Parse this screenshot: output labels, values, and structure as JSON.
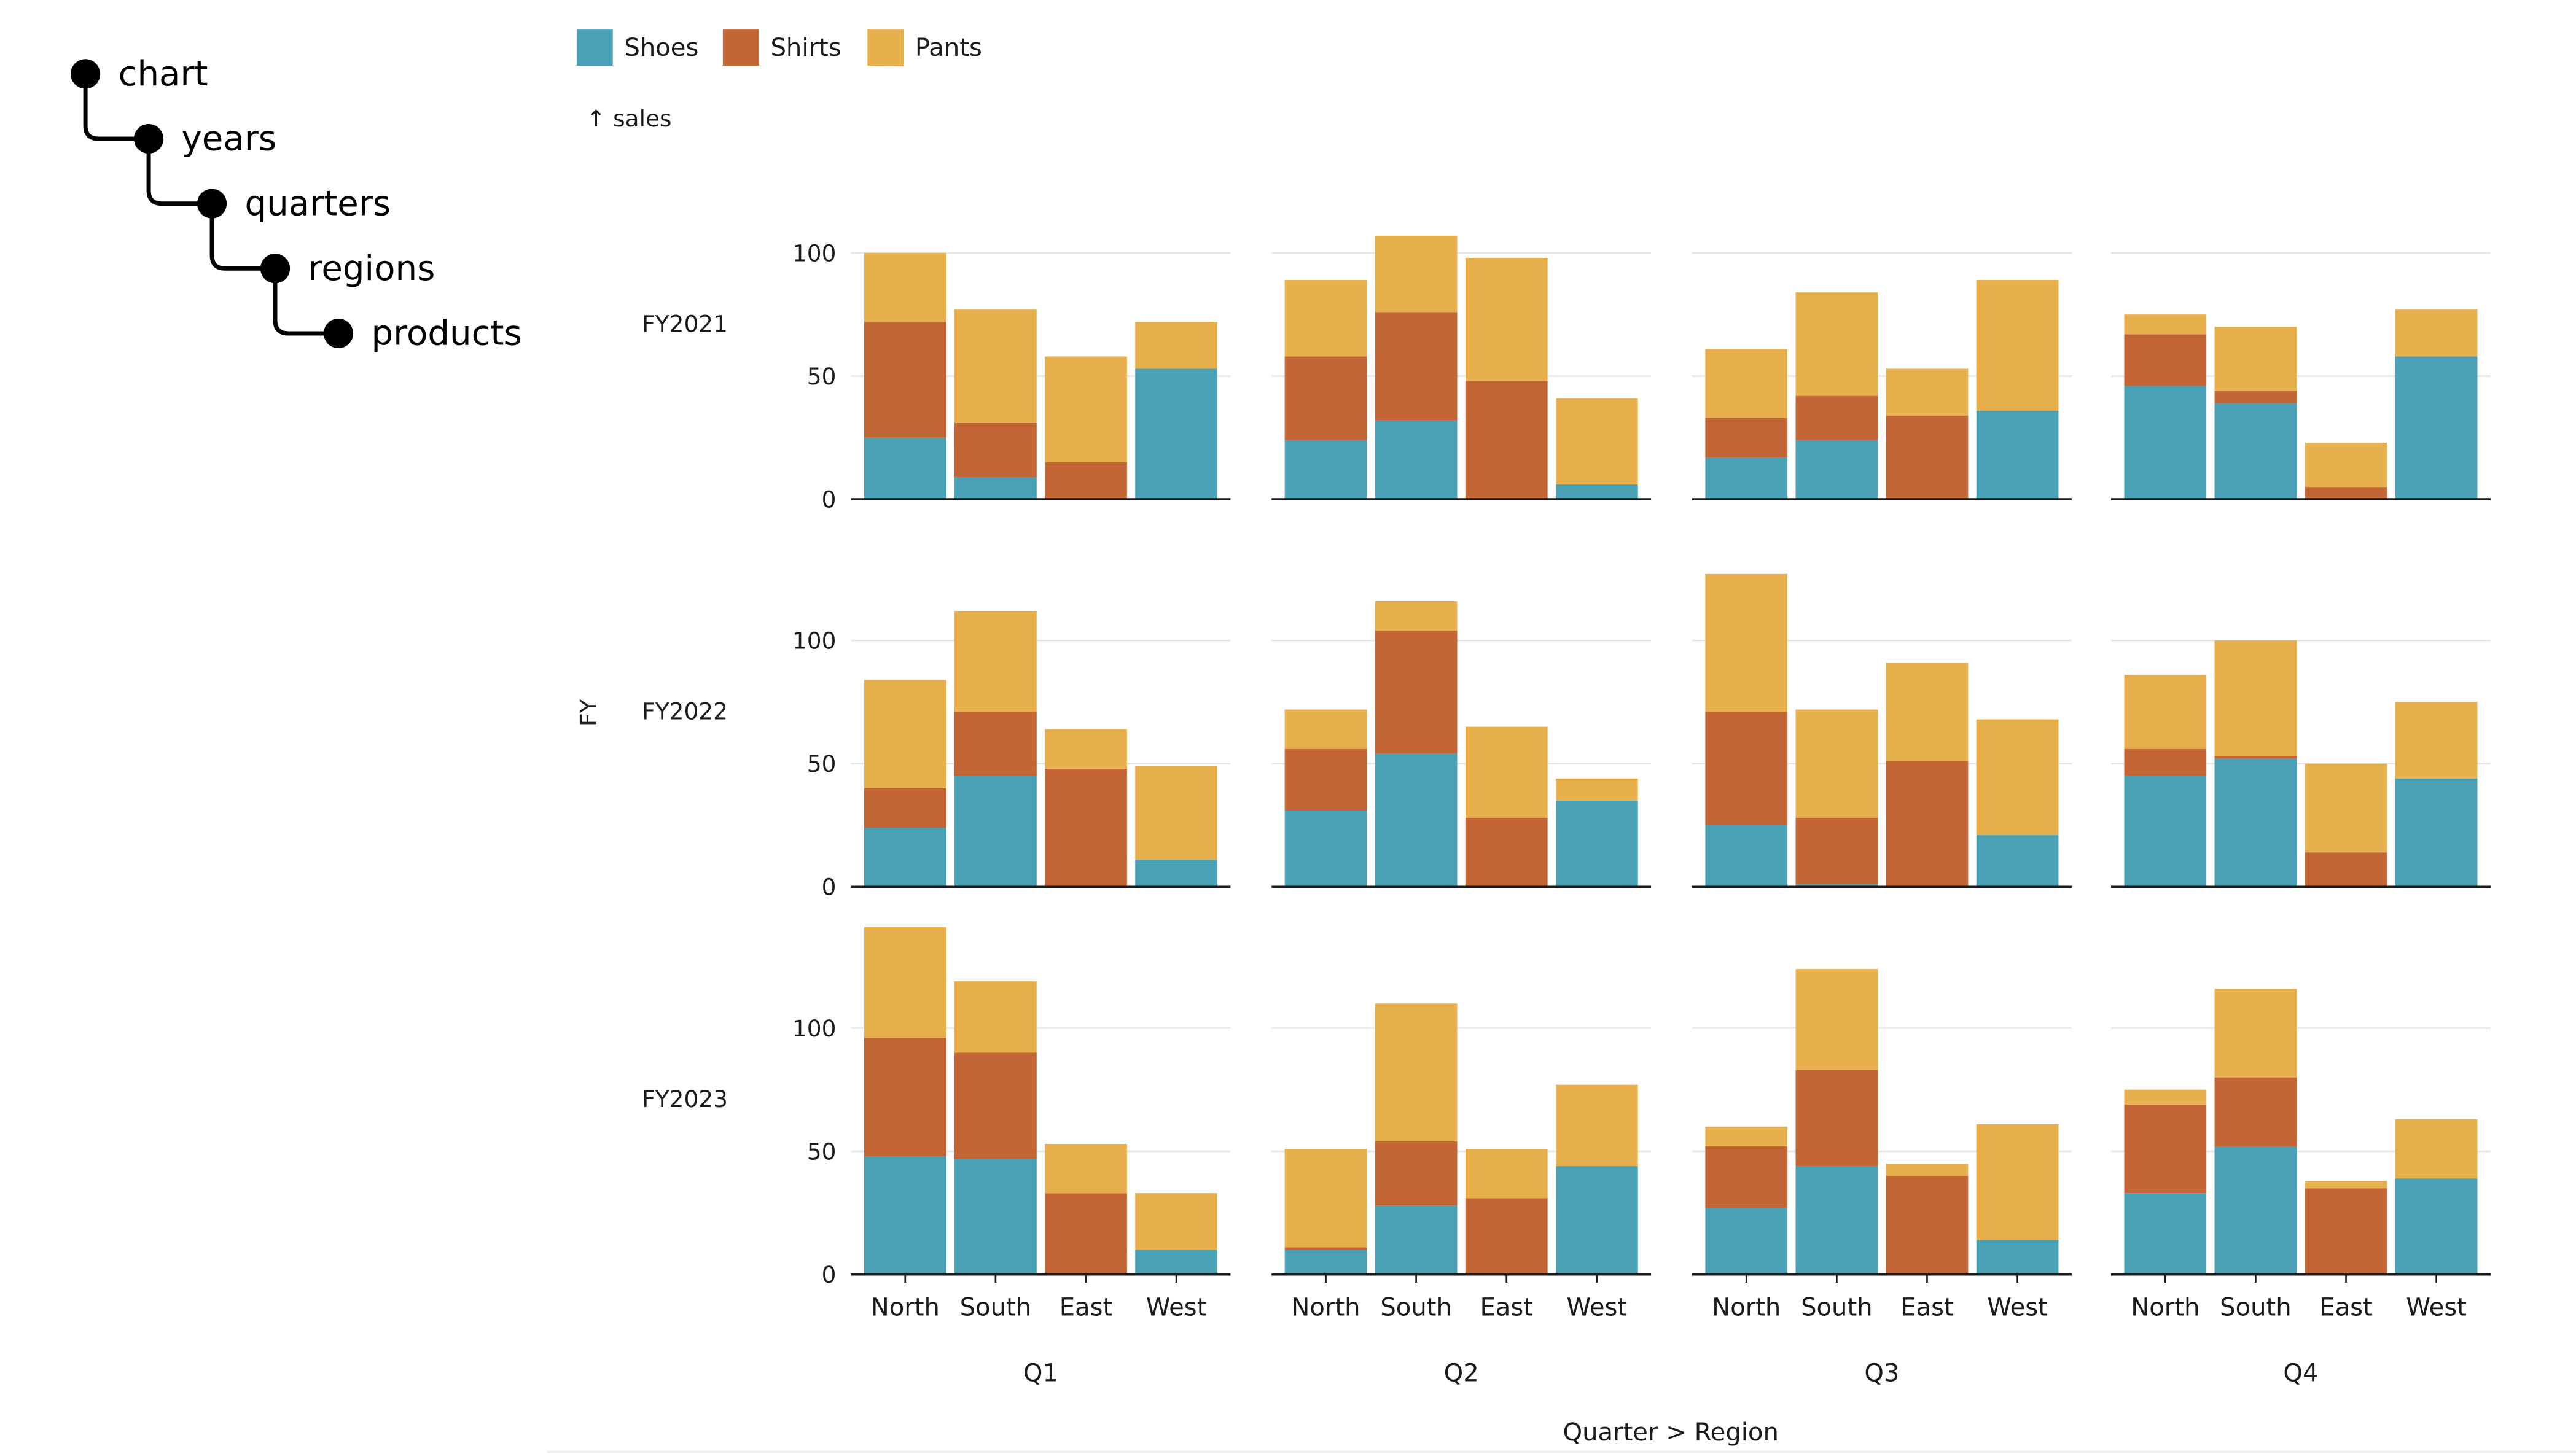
{
  "tree": {
    "nodes": [
      "chart",
      "years",
      "quarters",
      "regions",
      "products"
    ]
  },
  "colors": {
    "Shoes": "#4aa0b5",
    "Shirts": "#c46535",
    "Pants": "#e8b04d",
    "axis": "#1a1a1a",
    "grid": "#e6e6e6",
    "text": "#1a1a1a"
  },
  "chart_data": {
    "type": "bar",
    "stacked": true,
    "faceted": true,
    "legend": {
      "position": "top-left",
      "items": [
        "Shoes",
        "Shirts",
        "Pants"
      ]
    },
    "y_axis_label": "↑ sales",
    "row_label": "FY",
    "x_title": "Quarter > Region",
    "rows": [
      "FY2021",
      "FY2022",
      "FY2023"
    ],
    "columns": [
      "Q1",
      "Q2",
      "Q3",
      "Q4"
    ],
    "categories": [
      "North",
      "South",
      "East",
      "West"
    ],
    "series_names": [
      "Shoes",
      "Shirts",
      "Pants"
    ],
    "ylim": [
      0,
      140
    ],
    "yticks": [
      0,
      50,
      100
    ],
    "grid": true,
    "values": {
      "FY2021": {
        "Q1": {
          "Shoes": [
            25,
            9,
            0,
            53
          ],
          "Shirts": [
            47,
            22,
            15,
            0
          ],
          "Pants": [
            28,
            46,
            43,
            19
          ]
        },
        "Q2": {
          "Shoes": [
            24,
            32,
            0,
            6
          ],
          "Shirts": [
            34,
            44,
            48,
            0
          ],
          "Pants": [
            31,
            31,
            50,
            35
          ]
        },
        "Q3": {
          "Shoes": [
            17,
            24,
            0,
            36
          ],
          "Shirts": [
            16,
            18,
            34,
            0
          ],
          "Pants": [
            28,
            42,
            19,
            53
          ]
        },
        "Q4": {
          "Shoes": [
            46,
            39,
            0,
            58
          ],
          "Shirts": [
            21,
            5,
            5,
            0
          ],
          "Pants": [
            8,
            26,
            18,
            19
          ]
        }
      },
      "FY2022": {
        "Q1": {
          "Shoes": [
            24,
            45,
            0,
            11
          ],
          "Shirts": [
            16,
            26,
            48,
            0
          ],
          "Pants": [
            44,
            41,
            16,
            38
          ]
        },
        "Q2": {
          "Shoes": [
            31,
            54,
            0,
            35
          ],
          "Shirts": [
            25,
            50,
            28,
            0
          ],
          "Pants": [
            16,
            12,
            37,
            9
          ]
        },
        "Q3": {
          "Shoes": [
            25,
            1,
            0,
            21
          ],
          "Shirts": [
            46,
            27,
            51,
            0
          ],
          "Pants": [
            56,
            44,
            40,
            47
          ]
        },
        "Q4": {
          "Shoes": [
            45,
            52,
            0,
            44
          ],
          "Shirts": [
            11,
            1,
            14,
            0
          ],
          "Pants": [
            30,
            47,
            36,
            31
          ]
        }
      },
      "FY2023": {
        "Q1": {
          "Shoes": [
            48,
            47,
            0,
            10
          ],
          "Shirts": [
            48,
            43,
            33,
            0
          ],
          "Pants": [
            45,
            29,
            20,
            23
          ]
        },
        "Q2": {
          "Shoes": [
            10,
            28,
            0,
            44
          ],
          "Shirts": [
            1,
            26,
            31,
            0
          ],
          "Pants": [
            40,
            56,
            20,
            33
          ]
        },
        "Q3": {
          "Shoes": [
            27,
            44,
            0,
            14
          ],
          "Shirts": [
            25,
            39,
            40,
            0
          ],
          "Pants": [
            8,
            41,
            5,
            47
          ]
        },
        "Q4": {
          "Shoes": [
            33,
            52,
            0,
            39
          ],
          "Shirts": [
            36,
            28,
            35,
            0
          ],
          "Pants": [
            6,
            36,
            3,
            24
          ]
        }
      }
    }
  }
}
